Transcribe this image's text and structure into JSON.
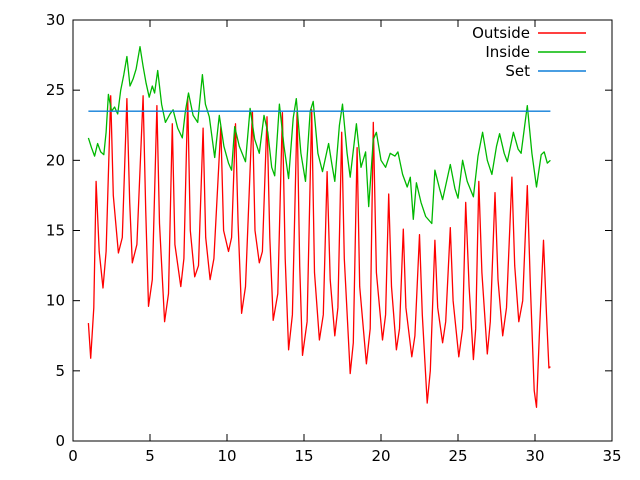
{
  "window": {
    "background_color": "#ffffff"
  },
  "chart_data": {
    "type": "line",
    "title": "",
    "xlabel": "",
    "ylabel": "",
    "xlim": [
      0,
      35
    ],
    "ylim": [
      0,
      30
    ],
    "x_ticks": [
      0,
      5,
      10,
      15,
      20,
      25,
      30,
      35
    ],
    "y_ticks": [
      0,
      5,
      10,
      15,
      20,
      25,
      30
    ],
    "grid": false,
    "legend_position": "top-right-inside",
    "legend_entries": [
      "Outside",
      "Inside",
      "Set"
    ],
    "axis_color": "#000000",
    "series": [
      {
        "name": "Outside",
        "color": "#ff0000",
        "points": [
          [
            1.0,
            8.4
          ],
          [
            1.15,
            5.9
          ],
          [
            1.35,
            9.5
          ],
          [
            1.5,
            18.5
          ],
          [
            1.7,
            13.5
          ],
          [
            1.95,
            10.9
          ],
          [
            2.15,
            13.5
          ],
          [
            2.45,
            24.6
          ],
          [
            2.62,
            17.5
          ],
          [
            2.95,
            13.4
          ],
          [
            3.2,
            14.5
          ],
          [
            3.5,
            24.4
          ],
          [
            3.68,
            17.0
          ],
          [
            3.85,
            12.7
          ],
          [
            4.15,
            14.0
          ],
          [
            4.55,
            24.6
          ],
          [
            4.72,
            16.5
          ],
          [
            4.9,
            9.6
          ],
          [
            5.15,
            11.5
          ],
          [
            5.45,
            23.9
          ],
          [
            5.62,
            15.5
          ],
          [
            5.95,
            8.5
          ],
          [
            6.2,
            10.5
          ],
          [
            6.45,
            22.6
          ],
          [
            6.62,
            14.0
          ],
          [
            7.0,
            11.0
          ],
          [
            7.2,
            13.0
          ],
          [
            7.45,
            24.5
          ],
          [
            7.62,
            15.0
          ],
          [
            7.9,
            11.7
          ],
          [
            8.15,
            12.5
          ],
          [
            8.45,
            22.3
          ],
          [
            8.62,
            14.5
          ],
          [
            8.9,
            11.5
          ],
          [
            9.15,
            13.0
          ],
          [
            9.6,
            22.4
          ],
          [
            9.78,
            15.0
          ],
          [
            10.1,
            13.5
          ],
          [
            10.3,
            14.5
          ],
          [
            10.55,
            22.6
          ],
          [
            10.72,
            15.5
          ],
          [
            10.95,
            9.1
          ],
          [
            11.2,
            11.0
          ],
          [
            11.65,
            23.5
          ],
          [
            11.82,
            15.0
          ],
          [
            12.1,
            12.7
          ],
          [
            12.3,
            13.5
          ],
          [
            12.6,
            23.1
          ],
          [
            12.78,
            14.5
          ],
          [
            13.0,
            8.6
          ],
          [
            13.3,
            10.5
          ],
          [
            13.6,
            23.4
          ],
          [
            13.78,
            13.0
          ],
          [
            14.0,
            6.5
          ],
          [
            14.25,
            9.0
          ],
          [
            14.55,
            23.5
          ],
          [
            14.72,
            12.5
          ],
          [
            14.9,
            6.1
          ],
          [
            15.2,
            8.5
          ],
          [
            15.5,
            23.6
          ],
          [
            15.68,
            12.0
          ],
          [
            16.0,
            7.2
          ],
          [
            16.25,
            9.0
          ],
          [
            16.5,
            19.2
          ],
          [
            16.7,
            11.5
          ],
          [
            17.0,
            7.5
          ],
          [
            17.2,
            9.5
          ],
          [
            17.45,
            22.0
          ],
          [
            17.62,
            13.0
          ],
          [
            18.0,
            4.8
          ],
          [
            18.2,
            7.0
          ],
          [
            18.45,
            20.9
          ],
          [
            18.62,
            11.0
          ],
          [
            19.05,
            5.5
          ],
          [
            19.3,
            8.0
          ],
          [
            19.5,
            22.7
          ],
          [
            19.7,
            12.0
          ],
          [
            20.1,
            7.2
          ],
          [
            20.3,
            9.0
          ],
          [
            20.5,
            17.6
          ],
          [
            20.68,
            11.0
          ],
          [
            21.0,
            6.5
          ],
          [
            21.2,
            8.0
          ],
          [
            21.45,
            15.1
          ],
          [
            21.62,
            9.5
          ],
          [
            22.0,
            6.0
          ],
          [
            22.2,
            7.5
          ],
          [
            22.5,
            14.7
          ],
          [
            22.68,
            9.0
          ],
          [
            23.0,
            2.7
          ],
          [
            23.2,
            5.0
          ],
          [
            23.5,
            14.3
          ],
          [
            23.68,
            9.5
          ],
          [
            24.0,
            7.0
          ],
          [
            24.2,
            8.5
          ],
          [
            24.5,
            15.2
          ],
          [
            24.68,
            10.0
          ],
          [
            25.05,
            6.0
          ],
          [
            25.3,
            8.0
          ],
          [
            25.5,
            17.0
          ],
          [
            25.72,
            11.0
          ],
          [
            26.0,
            5.8
          ],
          [
            26.15,
            8.0
          ],
          [
            26.35,
            18.5
          ],
          [
            26.55,
            12.0
          ],
          [
            26.9,
            6.2
          ],
          [
            27.1,
            8.5
          ],
          [
            27.4,
            17.7
          ],
          [
            27.6,
            11.5
          ],
          [
            27.9,
            7.5
          ],
          [
            28.15,
            9.5
          ],
          [
            28.5,
            18.8
          ],
          [
            28.68,
            12.5
          ],
          [
            28.95,
            8.5
          ],
          [
            29.2,
            10.0
          ],
          [
            29.5,
            18.2
          ],
          [
            29.7,
            11.0
          ],
          [
            29.95,
            3.6
          ],
          [
            30.1,
            2.4
          ],
          [
            30.3,
            8.0
          ],
          [
            30.55,
            14.3
          ],
          [
            30.75,
            9.0
          ],
          [
            30.9,
            5.2
          ],
          [
            31.0,
            5.3
          ]
        ]
      },
      {
        "name": "Inside",
        "color": "#00b800",
        "points": [
          [
            1.0,
            21.6
          ],
          [
            1.2,
            20.9
          ],
          [
            1.4,
            20.3
          ],
          [
            1.6,
            21.2
          ],
          [
            1.8,
            20.6
          ],
          [
            2.0,
            20.4
          ],
          [
            2.15,
            22.0
          ],
          [
            2.3,
            24.7
          ],
          [
            2.5,
            23.5
          ],
          [
            2.7,
            23.8
          ],
          [
            2.9,
            23.3
          ],
          [
            3.1,
            25.0
          ],
          [
            3.3,
            26.1
          ],
          [
            3.5,
            27.4
          ],
          [
            3.7,
            25.3
          ],
          [
            3.9,
            25.8
          ],
          [
            4.1,
            26.5
          ],
          [
            4.35,
            28.1
          ],
          [
            4.55,
            26.7
          ],
          [
            4.75,
            25.5
          ],
          [
            4.95,
            24.5
          ],
          [
            5.15,
            25.3
          ],
          [
            5.3,
            24.8
          ],
          [
            5.5,
            26.4
          ],
          [
            5.75,
            24.0
          ],
          [
            6.0,
            22.7
          ],
          [
            6.3,
            23.3
          ],
          [
            6.5,
            23.6
          ],
          [
            6.8,
            22.3
          ],
          [
            7.1,
            21.6
          ],
          [
            7.3,
            23.5
          ],
          [
            7.5,
            24.8
          ],
          [
            7.8,
            23.2
          ],
          [
            8.1,
            22.7
          ],
          [
            8.4,
            26.1
          ],
          [
            8.6,
            24.0
          ],
          [
            8.85,
            23.1
          ],
          [
            9.2,
            20.2
          ],
          [
            9.5,
            23.2
          ],
          [
            9.8,
            21.0
          ],
          [
            10.1,
            19.8
          ],
          [
            10.3,
            19.3
          ],
          [
            10.5,
            22.4
          ],
          [
            10.8,
            21.0
          ],
          [
            11.2,
            19.9
          ],
          [
            11.5,
            23.7
          ],
          [
            11.8,
            21.5
          ],
          [
            12.1,
            20.5
          ],
          [
            12.4,
            23.2
          ],
          [
            12.65,
            22.0
          ],
          [
            12.9,
            19.5
          ],
          [
            13.1,
            18.9
          ],
          [
            13.4,
            24.0
          ],
          [
            13.7,
            21.0
          ],
          [
            14.0,
            18.7
          ],
          [
            14.3,
            23.0
          ],
          [
            14.5,
            24.4
          ],
          [
            14.8,
            20.5
          ],
          [
            15.1,
            18.5
          ],
          [
            15.4,
            23.5
          ],
          [
            15.6,
            24.2
          ],
          [
            15.9,
            20.5
          ],
          [
            16.2,
            19.2
          ],
          [
            16.6,
            21.2
          ],
          [
            16.8,
            19.8
          ],
          [
            17.0,
            18.5
          ],
          [
            17.3,
            22.5
          ],
          [
            17.5,
            24.0
          ],
          [
            17.8,
            20.5
          ],
          [
            18.0,
            18.8
          ],
          [
            18.4,
            22.6
          ],
          [
            18.7,
            19.5
          ],
          [
            19.0,
            20.6
          ],
          [
            19.2,
            16.7
          ],
          [
            19.5,
            21.5
          ],
          [
            19.7,
            22.0
          ],
          [
            20.0,
            20.0
          ],
          [
            20.3,
            19.5
          ],
          [
            20.6,
            20.5
          ],
          [
            20.9,
            20.3
          ],
          [
            21.1,
            20.6
          ],
          [
            21.4,
            19.0
          ],
          [
            21.7,
            18.1
          ],
          [
            21.9,
            18.8
          ],
          [
            22.1,
            15.8
          ],
          [
            22.3,
            18.4
          ],
          [
            22.6,
            17.0
          ],
          [
            22.9,
            16.0
          ],
          [
            23.3,
            15.5
          ],
          [
            23.5,
            19.3
          ],
          [
            23.8,
            18.0
          ],
          [
            24.0,
            17.2
          ],
          [
            24.5,
            19.7
          ],
          [
            24.8,
            18.0
          ],
          [
            25.0,
            17.3
          ],
          [
            25.3,
            20.0
          ],
          [
            25.6,
            18.5
          ],
          [
            26.0,
            17.4
          ],
          [
            26.3,
            20.3
          ],
          [
            26.6,
            22.0
          ],
          [
            26.9,
            20.0
          ],
          [
            27.2,
            19.0
          ],
          [
            27.5,
            21.0
          ],
          [
            27.7,
            21.9
          ],
          [
            28.0,
            20.5
          ],
          [
            28.2,
            19.9
          ],
          [
            28.6,
            22.0
          ],
          [
            28.9,
            20.8
          ],
          [
            29.1,
            20.5
          ],
          [
            29.5,
            23.9
          ],
          [
            29.8,
            20.5
          ],
          [
            30.1,
            18.1
          ],
          [
            30.4,
            20.4
          ],
          [
            30.6,
            20.6
          ],
          [
            30.8,
            19.8
          ],
          [
            31.0,
            20.0
          ]
        ]
      },
      {
        "name": "Set",
        "color": "#0f7ed8",
        "points": [
          [
            1.0,
            23.5
          ],
          [
            31.0,
            23.5
          ]
        ]
      }
    ]
  }
}
